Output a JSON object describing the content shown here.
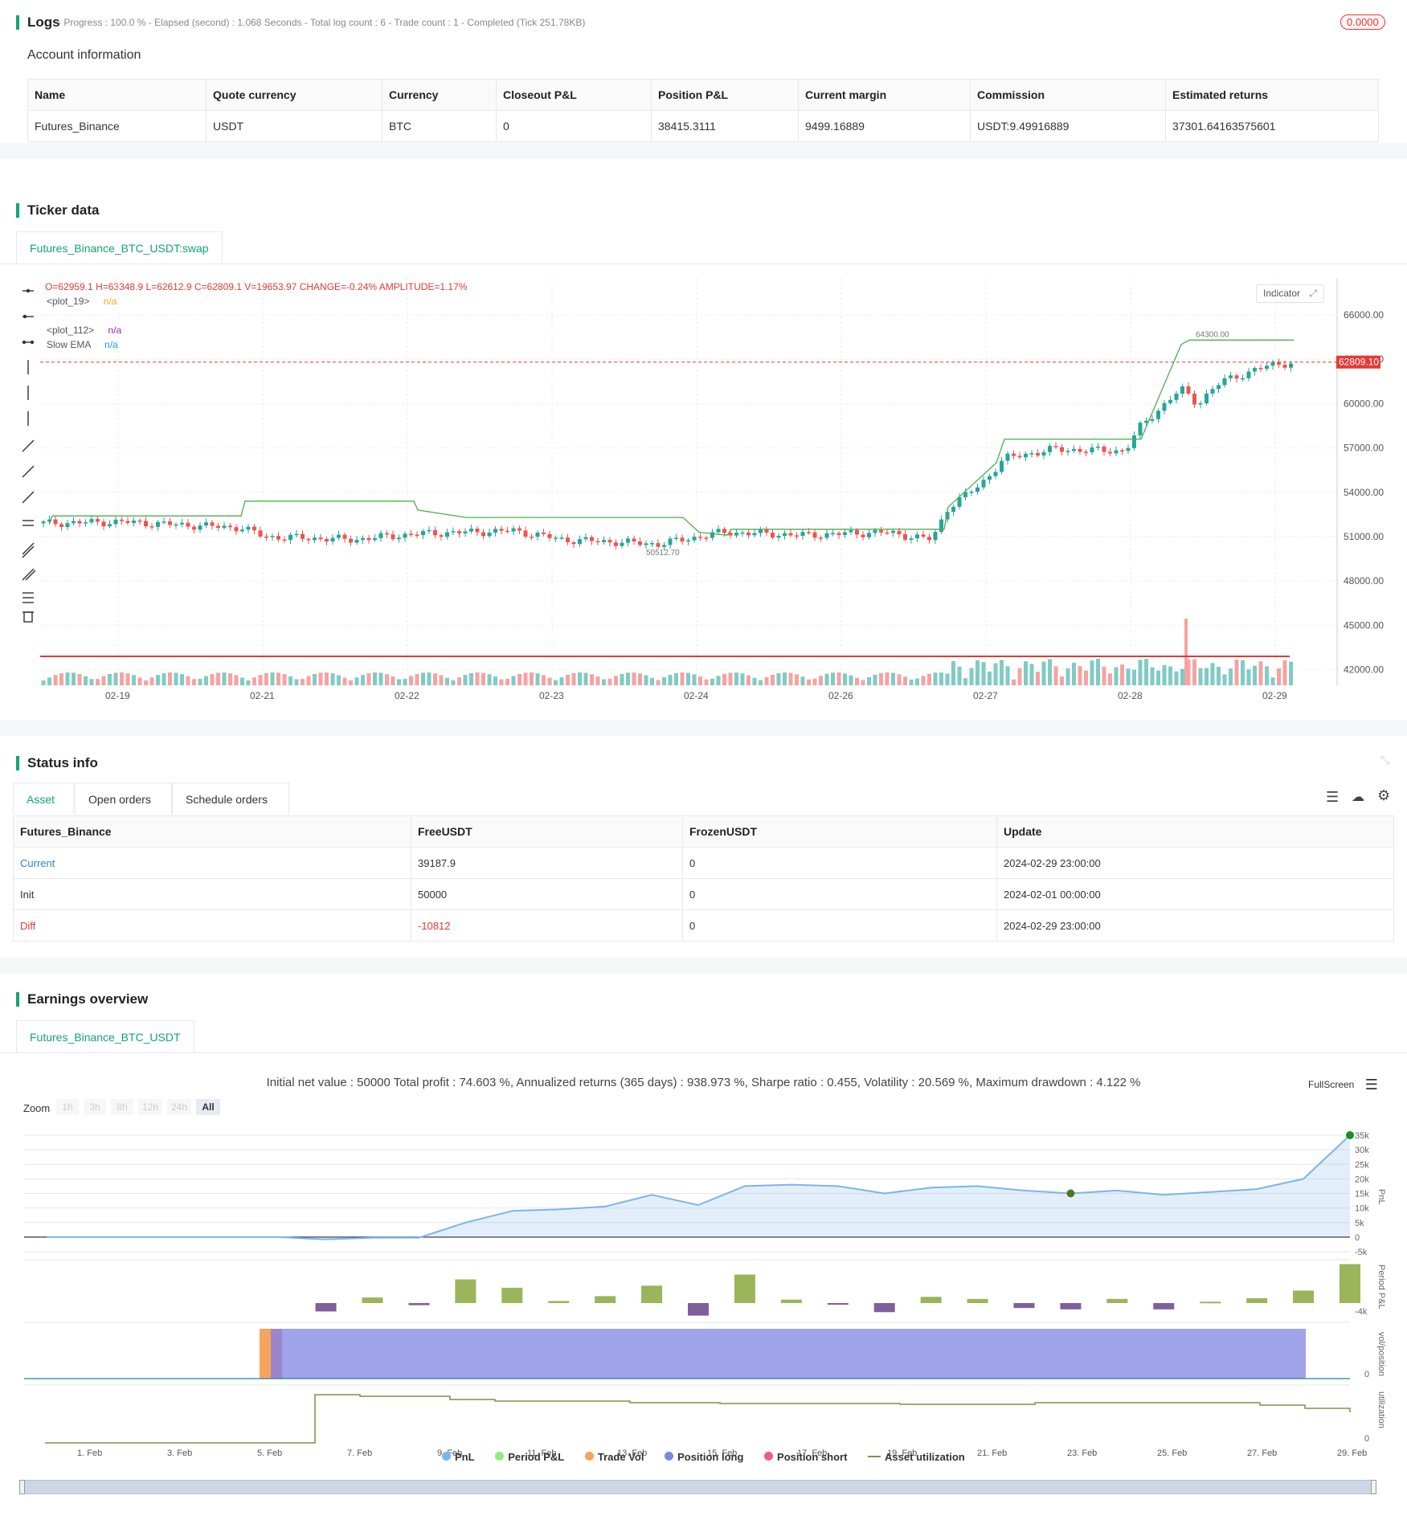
{
  "logs": {
    "title": "Logs",
    "progress_line": "- Progress : 100.0 % - Elapsed (second) : 1.068 Seconds - Total log count : 6 - Trade count : 1 - Completed (Tick 251.78KB)",
    "badge": "0.0000"
  },
  "account": {
    "title": "Account information",
    "headers": [
      "Name",
      "Quote currency",
      "Currency",
      "Closeout P&L",
      "Position P&L",
      "Current margin",
      "Commission",
      "Estimated returns"
    ],
    "row": [
      "Futures_Binance",
      "USDT",
      "BTC",
      "0",
      "38415.3111",
      "9499.16889",
      "USDT:9.49916889",
      "37301.64163575601"
    ]
  },
  "ticker": {
    "title": "Ticker data",
    "tab": "Futures_Binance_BTC_USDT:swap",
    "ohlc": {
      "o": "O=62959.1",
      "h": "H=63348.9",
      "l": "L=62612.9",
      "c": "C=62809.1",
      "v": "V=19653.97",
      "change": "CHANGE=-0.24%",
      "amplitude": "AMPLITUDE=1.17%"
    },
    "legend": [
      {
        "name": "<plot_19>",
        "value": "n/a",
        "color": "#f5a623"
      },
      {
        "name": "<plot_112>",
        "value": "n/a",
        "color": "#9c27b0"
      },
      {
        "name": "Slow EMA",
        "value": "n/a",
        "color": "#2196f3"
      }
    ],
    "indicator_button": "Indicator",
    "y_ticks": [
      "66000.00",
      "63000.00",
      "60000.00",
      "57000.00",
      "54000.00",
      "51000.00",
      "48000.00",
      "45000.00",
      "42000.00"
    ],
    "x_ticks": [
      "02-19",
      "02-21",
      "02-22",
      "02-23",
      "02-24",
      "02-26",
      "02-27",
      "02-28",
      "02-29"
    ],
    "last_price": "62809.10",
    "high_label": "64300.00",
    "low_label": "50512.70"
  },
  "status": {
    "title": "Status info",
    "tabs": [
      "Asset",
      "Open orders",
      "Schedule orders"
    ],
    "headers": [
      "Futures_Binance",
      "FreeUSDT",
      "FrozenUSDT",
      "Update"
    ],
    "rows": [
      {
        "label": "Current",
        "free": "39187.9",
        "frozen": "0",
        "update": "2024-02-29 23:00:00",
        "color": "#2f80d1"
      },
      {
        "label": "Init",
        "free": "50000",
        "frozen": "0",
        "update": "2024-02-01 00:00:00",
        "color": "#333333"
      },
      {
        "label": "Diff",
        "free": "-10812",
        "frozen": "0",
        "update": "2024-02-29 23:00:00",
        "color": "#e53935"
      }
    ]
  },
  "earnings": {
    "title": "Earnings overview",
    "tab": "Futures_Binance_BTC_USDT",
    "summary": "Initial net value : 50000 Total profit : 74.603 %, Annualized returns (365 days) : 938.973 %, Sharpe ratio : 0.455, Volatility : 20.569 %, Maximum drawdown : 4.122 %",
    "fullscreen": "FullScreen",
    "zoom_label": "Zoom",
    "zoom_options": [
      "1h",
      "3h",
      "8h",
      "12h",
      "24h",
      "All"
    ],
    "pnl_ticks": [
      "35k",
      "30k",
      "25k",
      "20k",
      "15k",
      "10k",
      "5k",
      "0",
      "-5k"
    ],
    "period_tick": "-4k",
    "vol_tick": "0",
    "util_tick": "0",
    "axis_labels": [
      "PnL",
      "Period P&L",
      "vol/position",
      "utilization"
    ],
    "x_ticks": [
      "1. Feb",
      "3. Feb",
      "5. Feb",
      "7. Feb",
      "9. Feb",
      "11. Feb",
      "13. Feb",
      "15. Feb",
      "17. Feb",
      "19. Feb",
      "21. Feb",
      "23. Feb",
      "25. Feb",
      "27. Feb",
      "29. Feb"
    ],
    "legend": [
      {
        "name": "PnL",
        "color": "#7cb5ec"
      },
      {
        "name": "Period P&L",
        "color": "#90ed7d"
      },
      {
        "name": "Trade Vol",
        "color": "#f7a35c"
      },
      {
        "name": "Position long",
        "color": "#8085e9"
      },
      {
        "name": "Position short",
        "color": "#f15c80"
      },
      {
        "name": "Asset utilization",
        "color": "#8d8a4a"
      }
    ]
  },
  "chart_data": {
    "type": "line",
    "x": [
      "1. Feb",
      "2. Feb",
      "3. Feb",
      "4. Feb",
      "5. Feb",
      "6. Feb",
      "7. Feb",
      "8. Feb",
      "9. Feb",
      "10. Feb",
      "11. Feb",
      "12. Feb",
      "13. Feb",
      "14. Feb",
      "15. Feb",
      "16. Feb",
      "17. Feb",
      "18. Feb",
      "19. Feb",
      "20. Feb",
      "21. Feb",
      "22. Feb",
      "23. Feb",
      "24. Feb",
      "25. Feb",
      "26. Feb",
      "27. Feb",
      "28. Feb",
      "29. Feb"
    ],
    "series": [
      {
        "name": "PnL",
        "values": [
          0,
          0,
          0,
          0,
          0,
          0,
          -800,
          -200,
          -200,
          5000,
          9000,
          9500,
          10500,
          14500,
          11000,
          17500,
          18000,
          17500,
          15000,
          17000,
          17500,
          16000,
          15000,
          16000,
          14500,
          15500,
          16500,
          20000,
          35000
        ]
      },
      {
        "name": "Period P&L",
        "values": [
          0,
          0,
          0,
          0,
          0,
          0,
          -1200,
          800,
          -300,
          3400,
          2200,
          300,
          1000,
          2500,
          -1800,
          4100,
          500,
          -200,
          -1300,
          900,
          600,
          -700,
          -900,
          600,
          -900,
          200,
          700,
          1800,
          5600
        ]
      }
    ],
    "ylim": [
      -5000,
      35000
    ]
  }
}
